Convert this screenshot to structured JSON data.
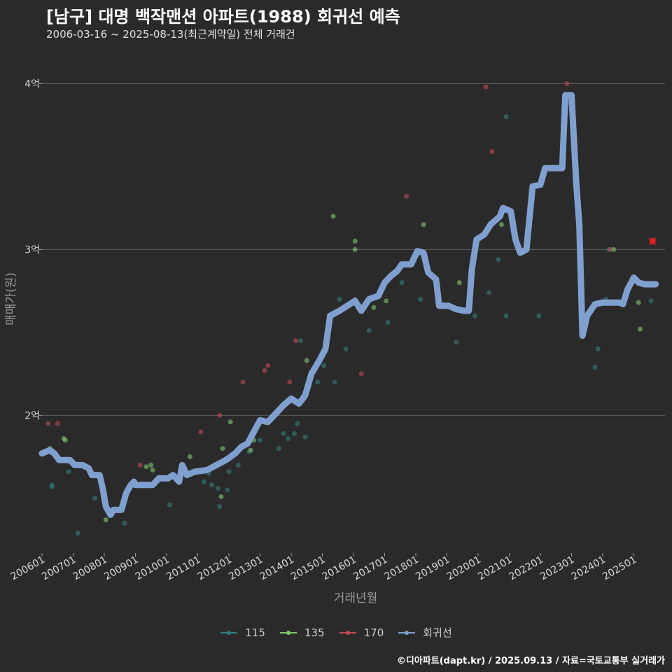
{
  "title": "[남구] 대명 백작맨션 아파트(1988) 회귀선 예측",
  "subtitle": "2006-03-16 ~ 2025-08-13(최근계약일) 전체 거래건",
  "caption": "©디아파트(dapt.kr) / 2025.09.13 / 자료=국토교통부 실거래가",
  "colors": {
    "background": "#2b2a2b",
    "grid": "#5e5e5e",
    "s115": "#2f7f7a",
    "s135": "#7fc86a",
    "s170": "#c24a52",
    "regression": "#7f9fcf",
    "latest_marker": "#e02020"
  },
  "chart_data": {
    "type": "scatter",
    "xlabel": "거래년월",
    "ylabel": "매매가(원)",
    "xlim": [
      2006.0,
      2026.0
    ],
    "ylim": [
      1.17,
      4.2
    ],
    "y_ticks": [
      2,
      3,
      4
    ],
    "y_tick_labels": [
      "2억",
      "3억",
      "4억"
    ],
    "x_ticks": [
      2006,
      2007,
      2008,
      2009,
      2010,
      2011,
      2012,
      2013,
      2014,
      2015,
      2016,
      2017,
      2018,
      2019,
      2020,
      2021,
      2022,
      2023,
      2024,
      2025
    ],
    "x_tick_labels": [
      "200601",
      "200701",
      "200801",
      "200901",
      "201001",
      "201101",
      "201201",
      "201301",
      "201401",
      "201501",
      "201601",
      "201701",
      "201801",
      "201901",
      "202001",
      "202101",
      "202201",
      "202301",
      "202401",
      "202501"
    ],
    "legend": [
      {
        "key": "s115",
        "label": "115"
      },
      {
        "key": "s135",
        "label": "135"
      },
      {
        "key": "s170",
        "label": "170"
      },
      {
        "key": "regression",
        "label": "회귀선"
      }
    ],
    "series": [
      {
        "name": "115",
        "key": "s115",
        "points": [
          [
            2006.32,
            1.58
          ],
          [
            2006.32,
            1.57
          ],
          [
            2006.85,
            1.66
          ],
          [
            2007.15,
            1.29
          ],
          [
            2007.7,
            1.5
          ],
          [
            2008.65,
            1.35
          ],
          [
            2010.1,
            1.46
          ],
          [
            2011.2,
            1.6
          ],
          [
            2011.35,
            1.65
          ],
          [
            2011.45,
            1.58
          ],
          [
            2011.65,
            1.56
          ],
          [
            2011.7,
            1.45
          ],
          [
            2011.95,
            1.55
          ],
          [
            2012.0,
            1.66
          ],
          [
            2012.3,
            1.7
          ],
          [
            2012.65,
            1.78
          ],
          [
            2013.0,
            1.85
          ],
          [
            2013.6,
            1.8
          ],
          [
            2013.75,
            1.89
          ],
          [
            2013.9,
            1.86
          ],
          [
            2014.1,
            1.89
          ],
          [
            2014.2,
            1.95
          ],
          [
            2014.3,
            2.45
          ],
          [
            2014.45,
            1.87
          ],
          [
            2014.85,
            2.2
          ],
          [
            2015.05,
            2.3
          ],
          [
            2015.4,
            2.2
          ],
          [
            2015.55,
            2.7
          ],
          [
            2015.75,
            2.4
          ],
          [
            2016.05,
            2.7
          ],
          [
            2016.5,
            2.51
          ],
          [
            2017.1,
            2.56
          ],
          [
            2017.55,
            2.8
          ],
          [
            2018.15,
            2.7
          ],
          [
            2019.3,
            2.44
          ],
          [
            2019.9,
            2.6
          ],
          [
            2020.35,
            2.74
          ],
          [
            2020.65,
            2.94
          ],
          [
            2020.9,
            3.8
          ],
          [
            2020.9,
            2.6
          ],
          [
            2021.95,
            2.6
          ],
          [
            2023.75,
            2.29
          ],
          [
            2023.85,
            2.4
          ],
          [
            2024.1,
            2.7
          ],
          [
            2024.2,
            3.0
          ],
          [
            2025.55,
            2.69
          ]
        ]
      },
      {
        "name": "135",
        "key": "s135",
        "points": [
          [
            2006.25,
            1.8
          ],
          [
            2006.7,
            1.86
          ],
          [
            2006.75,
            1.85
          ],
          [
            2008.05,
            1.37
          ],
          [
            2009.35,
            1.69
          ],
          [
            2009.5,
            1.7
          ],
          [
            2009.55,
            1.67
          ],
          [
            2010.75,
            1.75
          ],
          [
            2011.75,
            1.51
          ],
          [
            2011.8,
            1.8
          ],
          [
            2012.05,
            1.96
          ],
          [
            2012.7,
            1.79
          ],
          [
            2012.8,
            1.85
          ],
          [
            2014.5,
            2.33
          ],
          [
            2015.35,
            3.2
          ],
          [
            2016.05,
            3.05
          ],
          [
            2016.05,
            3.0
          ],
          [
            2016.65,
            2.65
          ],
          [
            2017.05,
            2.69
          ],
          [
            2018.25,
            3.15
          ],
          [
            2019.4,
            2.8
          ],
          [
            2020.75,
            3.15
          ],
          [
            2024.35,
            3.0
          ],
          [
            2025.15,
            2.68
          ],
          [
            2025.2,
            2.52
          ]
        ]
      },
      {
        "name": "170",
        "key": "s170",
        "points": [
          [
            2006.2,
            1.95
          ],
          [
            2006.5,
            1.95
          ],
          [
            2009.15,
            1.7
          ],
          [
            2011.1,
            1.9
          ],
          [
            2011.7,
            2.0
          ],
          [
            2012.45,
            2.2
          ],
          [
            2013.15,
            2.27
          ],
          [
            2013.25,
            2.3
          ],
          [
            2013.95,
            2.2
          ],
          [
            2014.15,
            2.45
          ],
          [
            2016.25,
            2.25
          ],
          [
            2017.7,
            3.32
          ],
          [
            2020.25,
            3.98
          ],
          [
            2020.45,
            3.59
          ],
          [
            2022.85,
            4.0
          ],
          [
            2022.85,
            3.88
          ],
          [
            2024.25,
            3.0
          ],
          [
            2025.6,
            3.05
          ]
        ]
      }
    ],
    "regression_line": [
      [
        2006.0,
        1.77
      ],
      [
        2006.25,
        1.79
      ],
      [
        2006.4,
        1.77
      ],
      [
        2006.55,
        1.73
      ],
      [
        2006.9,
        1.73
      ],
      [
        2007.05,
        1.7
      ],
      [
        2007.3,
        1.7
      ],
      [
        2007.5,
        1.68
      ],
      [
        2007.6,
        1.64
      ],
      [
        2007.85,
        1.64
      ],
      [
        2007.95,
        1.56
      ],
      [
        2008.05,
        1.45
      ],
      [
        2008.2,
        1.4
      ],
      [
        2008.3,
        1.43
      ],
      [
        2008.55,
        1.43
      ],
      [
        2008.7,
        1.53
      ],
      [
        2008.85,
        1.58
      ],
      [
        2008.95,
        1.6
      ],
      [
        2009.0,
        1.58
      ],
      [
        2009.3,
        1.58
      ],
      [
        2009.55,
        1.58
      ],
      [
        2009.75,
        1.62
      ],
      [
        2010.05,
        1.62
      ],
      [
        2010.2,
        1.64
      ],
      [
        2010.4,
        1.6
      ],
      [
        2010.5,
        1.7
      ],
      [
        2010.65,
        1.64
      ],
      [
        2010.9,
        1.66
      ],
      [
        2011.3,
        1.67
      ],
      [
        2011.6,
        1.7
      ],
      [
        2011.9,
        1.73
      ],
      [
        2012.2,
        1.77
      ],
      [
        2012.4,
        1.81
      ],
      [
        2012.6,
        1.83
      ],
      [
        2012.8,
        1.9
      ],
      [
        2013.0,
        1.97
      ],
      [
        2013.25,
        1.96
      ],
      [
        2013.5,
        2.01
      ],
      [
        2013.75,
        2.06
      ],
      [
        2014.0,
        2.1
      ],
      [
        2014.25,
        2.07
      ],
      [
        2014.45,
        2.12
      ],
      [
        2014.65,
        2.25
      ],
      [
        2014.9,
        2.33
      ],
      [
        2015.1,
        2.4
      ],
      [
        2015.25,
        2.6
      ],
      [
        2015.55,
        2.63
      ],
      [
        2015.8,
        2.66
      ],
      [
        2016.05,
        2.69
      ],
      [
        2016.25,
        2.63
      ],
      [
        2016.5,
        2.7
      ],
      [
        2016.8,
        2.72
      ],
      [
        2017.0,
        2.8
      ],
      [
        2017.2,
        2.84
      ],
      [
        2017.4,
        2.87
      ],
      [
        2017.55,
        2.91
      ],
      [
        2017.85,
        2.91
      ],
      [
        2018.05,
        2.99
      ],
      [
        2018.25,
        2.98
      ],
      [
        2018.4,
        2.86
      ],
      [
        2018.65,
        2.82
      ],
      [
        2018.75,
        2.66
      ],
      [
        2019.05,
        2.66
      ],
      [
        2019.3,
        2.64
      ],
      [
        2019.55,
        2.63
      ],
      [
        2019.7,
        2.63
      ],
      [
        2019.8,
        2.88
      ],
      [
        2019.95,
        3.06
      ],
      [
        2020.2,
        3.09
      ],
      [
        2020.4,
        3.15
      ],
      [
        2020.7,
        3.2
      ],
      [
        2020.8,
        3.25
      ],
      [
        2021.05,
        3.23
      ],
      [
        2021.2,
        3.06
      ],
      [
        2021.35,
        2.98
      ],
      [
        2021.55,
        3.0
      ],
      [
        2021.75,
        3.38
      ],
      [
        2022.0,
        3.39
      ],
      [
        2022.15,
        3.49
      ],
      [
        2022.5,
        3.49
      ],
      [
        2022.7,
        3.49
      ],
      [
        2022.8,
        3.93
      ],
      [
        2023.0,
        3.93
      ],
      [
        2023.15,
        3.4
      ],
      [
        2023.25,
        3.15
      ],
      [
        2023.35,
        2.48
      ],
      [
        2023.5,
        2.6
      ],
      [
        2023.75,
        2.67
      ],
      [
        2024.0,
        2.68
      ],
      [
        2024.25,
        2.68
      ],
      [
        2024.4,
        2.68
      ],
      [
        2024.55,
        2.68
      ],
      [
        2024.65,
        2.67
      ],
      [
        2024.8,
        2.76
      ],
      [
        2025.0,
        2.83
      ],
      [
        2025.15,
        2.8
      ],
      [
        2025.35,
        2.79
      ],
      [
        2025.7,
        2.79
      ]
    ],
    "latest_trade": [
      2025.6,
      3.05
    ]
  }
}
